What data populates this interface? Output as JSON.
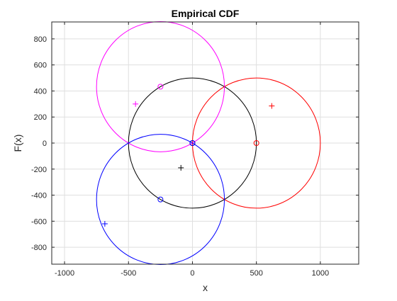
{
  "chart_data": {
    "type": "scatter",
    "title": "Empirical CDF",
    "xlabel": "x",
    "ylabel": "F(x)",
    "xlim": [
      -1100,
      1300
    ],
    "ylim": [
      -930,
      930
    ],
    "xticks": [
      -1000,
      -500,
      0,
      500,
      1000
    ],
    "xtick_labels": [
      "-1000",
      "-500",
      "0",
      "500",
      "1000"
    ],
    "yticks": [
      -800,
      -600,
      -400,
      -200,
      0,
      200,
      400,
      600,
      800
    ],
    "ytick_labels": [
      "-800",
      "-600",
      "-400",
      "-200",
      "0",
      "200",
      "400",
      "600",
      "800"
    ],
    "grid": true,
    "series": [
      {
        "color": "#000000",
        "circle": {
          "cx": 0,
          "cy": 0,
          "r": 500
        },
        "center_marker": [
          0,
          0
        ],
        "plus_marker": [
          -90,
          -190
        ]
      },
      {
        "color": "#ff0000",
        "circle": {
          "cx": 500,
          "cy": 0,
          "r": 500
        },
        "center_marker": [
          500,
          0
        ],
        "plus_marker": [
          620,
          285
        ]
      },
      {
        "color": "#ff00ff",
        "circle": {
          "cx": -250,
          "cy": 433,
          "r": 500
        },
        "center_marker": [
          -250,
          433
        ],
        "plus_marker": [
          -445,
          300
        ]
      },
      {
        "color": "#0000ff",
        "circle": {
          "cx": -250,
          "cy": -433,
          "r": 500
        },
        "center_marker": [
          -250,
          -433
        ],
        "plus_marker": [
          -685,
          -620
        ]
      }
    ],
    "extra_markers": [
      {
        "color": "#0000ff",
        "type": "o",
        "x": 0,
        "y": 0
      }
    ]
  }
}
